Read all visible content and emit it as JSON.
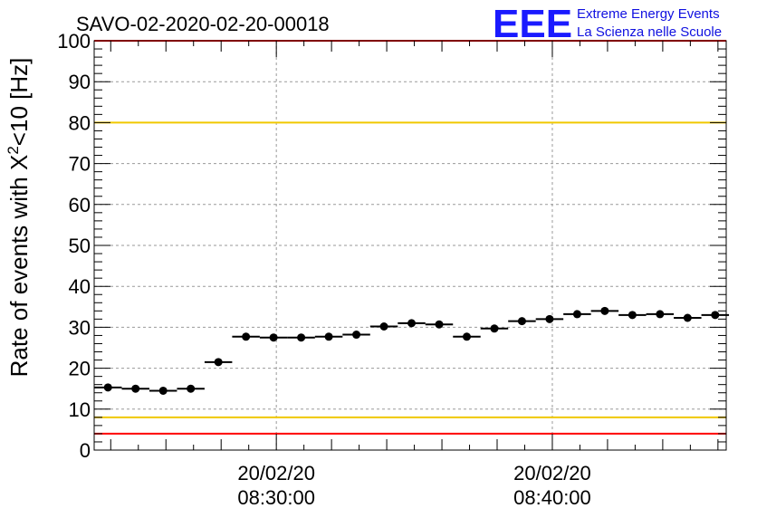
{
  "logo": {
    "mark": "EEE",
    "line1": "Extreme Energy Events",
    "line2": "La Scienza nelle Scuole",
    "color": "#1a1aff"
  },
  "chart_data": {
    "type": "scatter",
    "title": "SAVO-02-2020-02-20-00018",
    "ylabel_main": "Rate of events with X",
    "ylabel_sup": "2",
    "ylabel_tail": "<10 [Hz]",
    "xlabel": "",
    "ylim": [
      0,
      100
    ],
    "yticks": [
      0,
      10,
      20,
      30,
      40,
      50,
      60,
      70,
      80,
      90,
      100
    ],
    "xlim_minutes": [
      23.4,
      46.3
    ],
    "xticks": [
      {
        "minute": 30,
        "date": "20/02/20",
        "time": "08:30:00"
      },
      {
        "minute": 40,
        "date": "20/02/20",
        "time": "08:40:00"
      }
    ],
    "grid": true,
    "bin_width_minutes": 1,
    "points": [
      {
        "x": 23.9,
        "y": 15.3
      },
      {
        "x": 24.9,
        "y": 15.0
      },
      {
        "x": 25.9,
        "y": 14.5
      },
      {
        "x": 26.9,
        "y": 15.0
      },
      {
        "x": 27.9,
        "y": 21.5
      },
      {
        "x": 28.9,
        "y": 27.7
      },
      {
        "x": 29.9,
        "y": 27.5
      },
      {
        "x": 30.9,
        "y": 27.5
      },
      {
        "x": 31.9,
        "y": 27.7
      },
      {
        "x": 32.9,
        "y": 28.2
      },
      {
        "x": 33.9,
        "y": 30.2
      },
      {
        "x": 34.9,
        "y": 31.0
      },
      {
        "x": 35.9,
        "y": 30.7
      },
      {
        "x": 36.9,
        "y": 27.7
      },
      {
        "x": 37.9,
        "y": 29.7
      },
      {
        "x": 38.9,
        "y": 31.5
      },
      {
        "x": 39.9,
        "y": 32.0
      },
      {
        "x": 40.9,
        "y": 33.2
      },
      {
        "x": 41.9,
        "y": 34.0
      },
      {
        "x": 42.9,
        "y": 33.0
      },
      {
        "x": 43.9,
        "y": 33.2
      },
      {
        "x": 44.9,
        "y": 32.3
      },
      {
        "x": 45.9,
        "y": 33.0
      }
    ],
    "reference_lines": [
      {
        "y": 100,
        "color": "#ff0000"
      },
      {
        "y": 80,
        "color": "#f0c800"
      },
      {
        "y": 8,
        "color": "#f0c800"
      },
      {
        "y": 4,
        "color": "#ff0000"
      }
    ]
  }
}
